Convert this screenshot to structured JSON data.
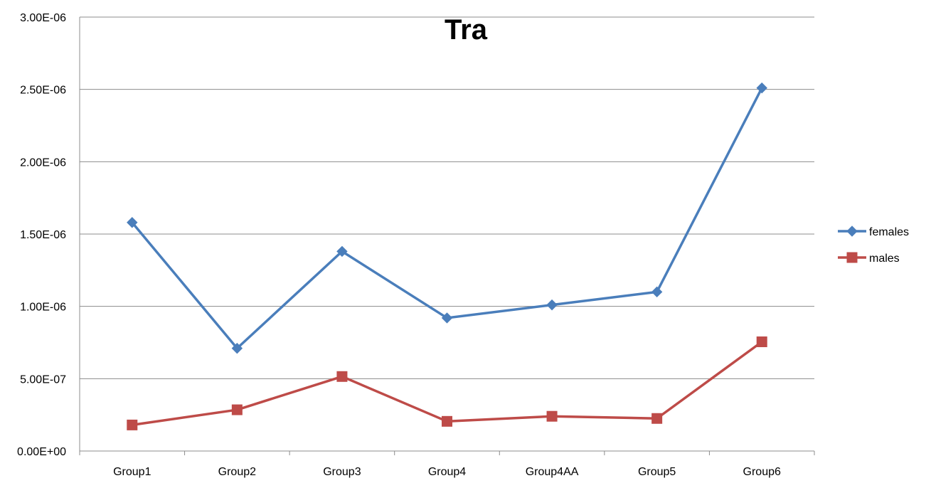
{
  "chart_data": {
    "type": "line",
    "title": "Tra",
    "xlabel": "",
    "ylabel": "",
    "categories": [
      "Group1",
      "Group2",
      "Group3",
      "Group4",
      "Group4AA",
      "Group5",
      "Group6"
    ],
    "ylim": [
      0,
      3e-06
    ],
    "yticks": [
      0,
      5e-07,
      1e-06,
      1.5e-06,
      2e-06,
      2.5e-06,
      3e-06
    ],
    "ytick_labels": [
      "0.00E+00",
      "5.00E-07",
      "1.00E-06",
      "1.50E-06",
      "2.00E-06",
      "2.50E-06",
      "3.00E-06"
    ],
    "grid": true,
    "legend_position": "right",
    "series": [
      {
        "name": "females",
        "color": "#4a7ebb",
        "marker": "diamond",
        "values": [
          1.58e-06,
          7.1e-07,
          1.38e-06,
          9.2e-07,
          1.01e-06,
          1.1e-06,
          2.51e-06
        ]
      },
      {
        "name": "males",
        "color": "#be4b48",
        "marker": "square",
        "values": [
          1.8e-07,
          2.85e-07,
          5.15e-07,
          2.05e-07,
          2.4e-07,
          2.25e-07,
          7.55e-07
        ]
      }
    ]
  }
}
